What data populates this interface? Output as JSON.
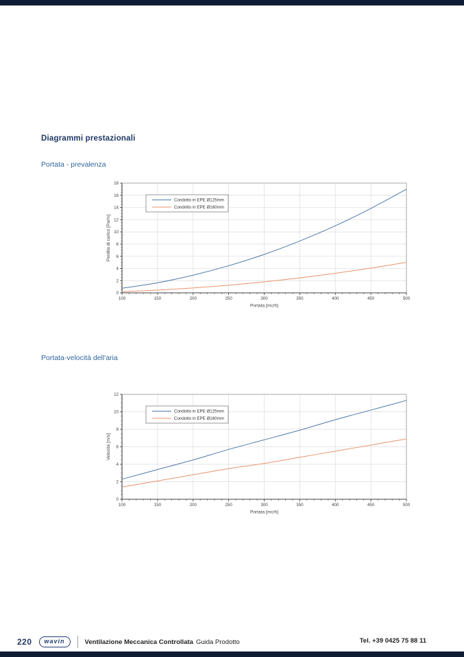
{
  "page": {
    "heading": "Diagrammi prestazionali",
    "section1_title": "Portata - prevalenza",
    "section2_title": "Portata-velocità dell'aria"
  },
  "footer": {
    "page_number": "220",
    "logo_text": "wavin",
    "doc_title_bold": "Ventilazione Meccanica Controllata",
    "doc_title_regular": "Guida Prodotto",
    "phone": "Tel. +39 0425 75 88 11"
  },
  "colors": {
    "heading_navy": "#1f3864",
    "subheading_blue": "#31659c",
    "band_navy": "#101c33",
    "series_blue": "#4e79a7",
    "series_orange": "#e8936c",
    "grid": "#dcdcdc",
    "axis": "#404040",
    "border": "#a0a0a0",
    "tick_text": "#404040"
  },
  "chart_data": [
    {
      "type": "line",
      "title": "",
      "xlabel": "Portata [mc/h]",
      "ylabel": "Perdita di carico [Pa/m]",
      "x": [
        100,
        150,
        200,
        250,
        300,
        350,
        400,
        450,
        500
      ],
      "xlim": [
        100,
        500
      ],
      "ylim": [
        0,
        18
      ],
      "ytick_step": 2,
      "xtick_step": 50,
      "grid": true,
      "legend_position": "upper-left-inside",
      "series": [
        {
          "name": "Condotto in EPE Ø125mm",
          "color_key": "series_blue",
          "values": [
            0.75,
            1.65,
            2.9,
            4.45,
            6.3,
            8.5,
            11.0,
            13.85,
            17.0
          ]
        },
        {
          "name": "Condotto in EPE Ø160mm",
          "color_key": "series_orange",
          "values": [
            0.2,
            0.45,
            0.8,
            1.25,
            1.8,
            2.45,
            3.2,
            4.05,
            5.0
          ]
        }
      ]
    },
    {
      "type": "line",
      "title": "",
      "xlabel": "Portata [mc/h]",
      "ylabel": "Velocità [m/s]",
      "x": [
        100,
        150,
        200,
        250,
        300,
        350,
        400,
        450,
        500
      ],
      "xlim": [
        100,
        500
      ],
      "ylim": [
        0,
        12
      ],
      "ytick_step": 2,
      "xtick_step": 50,
      "grid": true,
      "legend_position": "upper-left-inside",
      "series": [
        {
          "name": "Condotto in EPE Ø125mm",
          "color_key": "series_blue",
          "values": [
            2.3,
            3.4,
            4.5,
            5.7,
            6.8,
            7.9,
            9.1,
            10.2,
            11.3
          ]
        },
        {
          "name": "Condotto in EPE Ø160mm",
          "color_key": "series_orange",
          "values": [
            1.4,
            2.1,
            2.8,
            3.5,
            4.1,
            4.8,
            5.5,
            6.2,
            6.9
          ]
        }
      ]
    }
  ]
}
